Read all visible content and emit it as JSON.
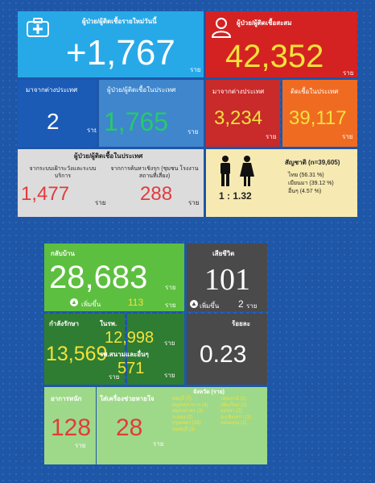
{
  "top": {
    "new_cases": {
      "label": "ผู้ป่วย/ผู้ติดเชื้อรายใหม่วันนี้",
      "value": "+1,767",
      "unit": "ราย"
    },
    "total_cases": {
      "label": "ผู้ป่วย/ผู้ติดเชื้อสะสม",
      "value": "42,352",
      "unit": "ราย"
    },
    "from_abroad": {
      "label": "มาจากต่างประเทศ",
      "value": "2",
      "unit": "ราย"
    },
    "domestic": {
      "label": "ผู้ป่วย/ผู้ติดเชื้อในประเทศ",
      "value": "1,765",
      "unit": "ราย"
    },
    "total_abroad": {
      "label": "มาจากต่างประเทศ",
      "value": "3,234",
      "unit": "ราย"
    },
    "total_domestic": {
      "label": "ติดเชื้อในประเทศ",
      "value": "39,117",
      "unit": "ราย"
    },
    "domestic_breakdown": {
      "title": "ผู้ป่วย/ผู้ติดเชื้อในประเทศ",
      "service": {
        "label": "จากระบบเฝ้าระวังและระบบบริการ",
        "value": "1,477",
        "unit": "ราย"
      },
      "community": {
        "label": "จากการค้นหาเชิงรุก (ชุมชน โรงงาน สถานที่เสี่ยง)",
        "value": "288",
        "unit": "ราย"
      }
    },
    "gender": {
      "ratio": "1 : 1.32",
      "nationality_title": "สัญชาติ (n=39,605)",
      "nationalities": [
        "ไทย (56.31 %)",
        "เมียนมา (39.12 %)",
        "อื่นๆ (4.57 %)"
      ]
    }
  },
  "bottom": {
    "recovered": {
      "label": "กลับบ้าน",
      "value": "28,683",
      "unit": "ราย",
      "increase_label": "เพิ่มขึ้น",
      "increase_value": "113",
      "increase_unit": "ราย"
    },
    "deaths": {
      "label": "เสียชีวิต",
      "value": "101",
      "increase_label": "เพิ่มขึ้น",
      "increase_value": "2",
      "increase_unit": "ราย"
    },
    "hospitalized": {
      "label": "กำลังรักษา",
      "value": "13,569",
      "unit": "ราย"
    },
    "hospital": {
      "label": "ในรพ.",
      "value": "12,998",
      "unit": "ราย"
    },
    "field_hospital": {
      "label": "รพ.สนามและอื่นๆ",
      "value": "571",
      "unit": "ราย"
    },
    "percent": {
      "label": "ร้อยละ",
      "value": "0.23"
    },
    "severe": {
      "label": "อาการหนัก",
      "value": "128",
      "unit": "ราย"
    },
    "ventilator": {
      "label": "ใส่เครื่องช่วยหายใจ",
      "value": "28",
      "unit": "ราย"
    },
    "regions": {
      "title": "จังหวัด (ราย)",
      "items": [
        "ชลบุรี (7)",
        "สมุทรปราการ (4)",
        "สมุทรสาคร (3)",
        "ระยอง (2)",
        "กรุงเทพฯ (33)",
        "นนทบุรี (3)",
        "ปทุมธานี (2)",
        "เชียงใหม่ (2)",
        "สงขลา (2)",
        "ฉะเชิงเทรา (1)",
        "ขอนแก่น (1)"
      ]
    }
  }
}
